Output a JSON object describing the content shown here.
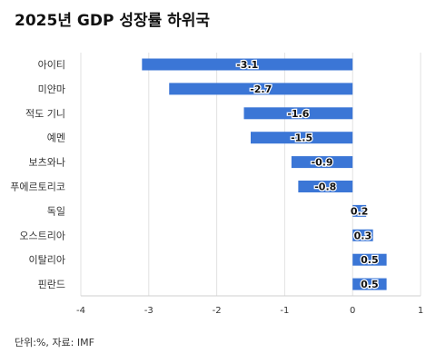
{
  "chart_data": {
    "type": "bar",
    "orientation": "horizontal",
    "title": "2025년 GDP 성장률 하위국",
    "categories": [
      "아이티",
      "미얀마",
      "적도 기니",
      "예멘",
      "보츠와나",
      "푸에르토리코",
      "독일",
      "오스트리아",
      "이탈리아",
      "핀란드"
    ],
    "values": [
      -3.1,
      -2.7,
      -1.6,
      -1.5,
      -0.9,
      -0.8,
      0.2,
      0.3,
      0.5,
      0.5
    ],
    "xlim": [
      -4,
      1
    ],
    "xticks": [
      -4,
      -3,
      -2,
      -1,
      0,
      1
    ],
    "grid": true,
    "bar_color": "#3b76d6",
    "note": "단위:%, 자료: IMF"
  }
}
